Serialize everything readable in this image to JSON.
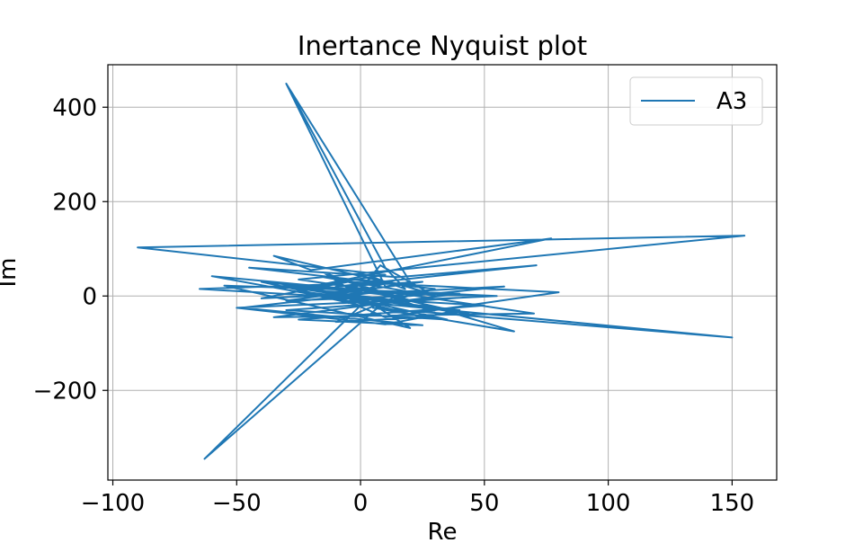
{
  "chart_data": {
    "type": "line",
    "title": "Inertance Nyquist plot",
    "xlabel": "Re",
    "ylabel": "Im",
    "xlim": [
      -102,
      168
    ],
    "ylim": [
      -390,
      490
    ],
    "xticks": [
      -100,
      -50,
      0,
      50,
      100,
      150
    ],
    "xtick_labels": [
      "−100",
      "−50",
      "0",
      "50",
      "100",
      "150"
    ],
    "yticks": [
      -200,
      0,
      200,
      400
    ],
    "ytick_labels": [
      "−200",
      "0",
      "200",
      "400"
    ],
    "grid": true,
    "legend_position": "top-right",
    "colors": {
      "series": "#1f77b4",
      "grid": "#b0b0b0",
      "axes": "#000000"
    },
    "series": [
      {
        "name": "A3",
        "color": "#1f77b4",
        "x": [
          -30,
          10,
          20,
          -30,
          10,
          18,
          5,
          -10,
          12,
          25,
          -5,
          8,
          30,
          -15,
          10,
          -35,
          -20,
          77,
          -20,
          10,
          -90,
          155,
          -25,
          15,
          -60,
          5,
          30,
          -45,
          15,
          71,
          -10,
          25,
          -30,
          20,
          58,
          -40,
          -5,
          80,
          10,
          -15,
          50,
          -30,
          35,
          -20,
          45,
          -10,
          -65,
          50,
          -25,
          25,
          -48,
          10,
          70,
          -35,
          40,
          -55,
          20,
          -15,
          30,
          -5,
          62,
          5,
          150,
          -5,
          -40,
          15,
          -10,
          25,
          -20,
          8,
          -63,
          0,
          -25,
          40,
          10,
          -50,
          55,
          -30,
          20,
          -10,
          15,
          0
        ],
        "y": [
          450,
          20,
          30,
          450,
          60,
          15,
          40,
          -5,
          30,
          10,
          -15,
          65,
          0,
          40,
          30,
          85,
          55,
          122,
          20,
          45,
          103,
          128,
          35,
          5,
          42,
          -20,
          15,
          60,
          40,
          65,
          20,
          30,
          -10,
          0,
          20,
          -5,
          30,
          8,
          -45,
          10,
          0,
          -30,
          -50,
          15,
          -40,
          25,
          15,
          -20,
          -50,
          -62,
          -25,
          10,
          -37,
          -45,
          5,
          22,
          -68,
          50,
          -35,
          30,
          -75,
          -25,
          -88,
          -10,
          30,
          0,
          -55,
          -45,
          15,
          -20,
          -345,
          -20,
          10,
          -30,
          -60,
          -25,
          0,
          20,
          -20,
          5,
          -10,
          0
        ]
      }
    ]
  }
}
